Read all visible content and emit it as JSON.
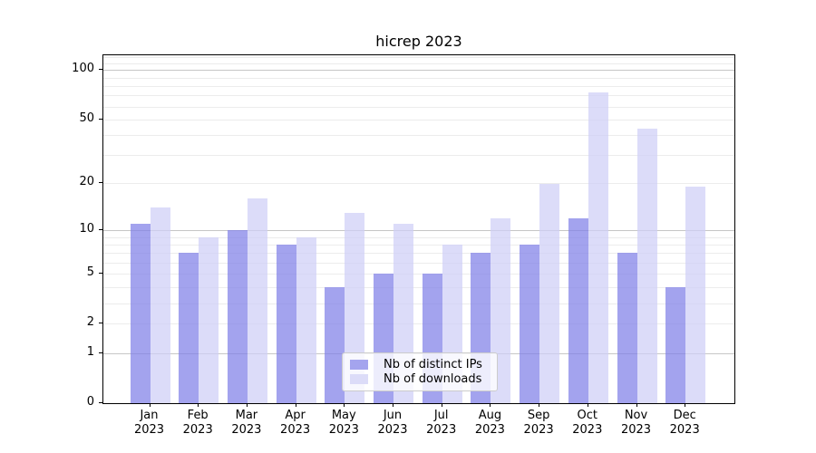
{
  "chart_data": {
    "type": "bar",
    "title": "hicrep 2023",
    "categories": [
      "Jan",
      "Feb",
      "Mar",
      "Apr",
      "May",
      "Jun",
      "Jul",
      "Aug",
      "Sep",
      "Oct",
      "Nov",
      "Dec"
    ],
    "year_label": "2023",
    "series": [
      {
        "name": "Nb of distinct IPs",
        "color": "rgba(128,128,232,0.72)",
        "legend_color": "#a4a4ee",
        "values": [
          11,
          7,
          10,
          8,
          4,
          5,
          5,
          7,
          8,
          12,
          7,
          4
        ]
      },
      {
        "name": "Nb of downloads",
        "color": "rgba(206,206,246,0.72)",
        "legend_color": "#dcdcf8",
        "values": [
          14,
          9,
          16,
          9,
          13,
          11,
          8,
          12,
          20,
          73,
          44,
          19
        ]
      }
    ],
    "scale": "log1p",
    "ylim": [
      0,
      123
    ],
    "y_tick_labels": [
      0,
      1,
      2,
      5,
      10,
      20,
      50,
      100
    ],
    "y_major_gridlines": [
      1,
      10,
      100
    ],
    "y_minor_gridlines": [
      2,
      3,
      4,
      5,
      6,
      7,
      8,
      9,
      20,
      30,
      40,
      50,
      60,
      70,
      80,
      90,
      110,
      120
    ],
    "grid": true,
    "legend_position": "lower center",
    "xlabel": "",
    "ylabel": ""
  }
}
